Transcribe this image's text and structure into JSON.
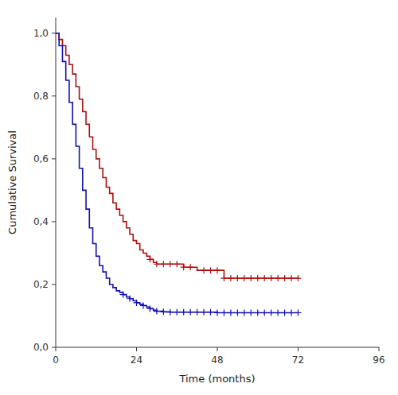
{
  "chart_data": {
    "type": "step",
    "xlabel": "Time (months)",
    "ylabel": "Cumulative Survival",
    "xlim": [
      0,
      96
    ],
    "ylim": [
      0.0,
      1.05
    ],
    "xticks": [
      0,
      24,
      48,
      72,
      96
    ],
    "yticks": [
      {
        "value": 0.0,
        "label": "0,0"
      },
      {
        "value": 0.2,
        "label": "0,2"
      },
      {
        "value": 0.4,
        "label": "0,4"
      },
      {
        "value": 0.6,
        "label": "0,6"
      },
      {
        "value": 0.8,
        "label": "0,8"
      },
      {
        "value": 1.0,
        "label": "1,0"
      }
    ],
    "grid": false,
    "series": [
      {
        "type": "step",
        "color": "#aa1111",
        "x": [
          0,
          1,
          2,
          3,
          4,
          5,
          6,
          7,
          8,
          9,
          10,
          11,
          12,
          13,
          14,
          15,
          16,
          17,
          18,
          19,
          20,
          21,
          22,
          23,
          24,
          25,
          26,
          27,
          28,
          29,
          30,
          31,
          32,
          33,
          34,
          35,
          36,
          37,
          38,
          39,
          40,
          41,
          42,
          43,
          44,
          45,
          46,
          47,
          48,
          50,
          52,
          54,
          56,
          58,
          60,
          62,
          64,
          66,
          68,
          70,
          72
        ],
        "values": [
          1.0,
          0.98,
          0.96,
          0.93,
          0.9,
          0.87,
          0.83,
          0.79,
          0.75,
          0.71,
          0.67,
          0.63,
          0.6,
          0.57,
          0.54,
          0.51,
          0.49,
          0.46,
          0.44,
          0.42,
          0.4,
          0.38,
          0.36,
          0.34,
          0.33,
          0.31,
          0.3,
          0.29,
          0.28,
          0.27,
          0.265,
          0.265,
          0.265,
          0.265,
          0.265,
          0.265,
          0.265,
          0.265,
          0.255,
          0.255,
          0.255,
          0.255,
          0.245,
          0.245,
          0.245,
          0.245,
          0.245,
          0.245,
          0.245,
          0.22,
          0.22,
          0.22,
          0.22,
          0.22,
          0.22,
          0.22,
          0.22,
          0.22,
          0.22,
          0.22,
          0.22
        ]
      },
      {
        "type": "step",
        "color": "#1111aa",
        "x": [
          0,
          1,
          2,
          3,
          4,
          5,
          6,
          7,
          8,
          9,
          10,
          11,
          12,
          13,
          14,
          15,
          16,
          17,
          18,
          19,
          20,
          21,
          22,
          23,
          24,
          25,
          26,
          27,
          28,
          29,
          30,
          32,
          34,
          36,
          38,
          40,
          42,
          44,
          46,
          48,
          50,
          52,
          54,
          56,
          58,
          60,
          62,
          64,
          66,
          68,
          70,
          72
        ],
        "values": [
          1.0,
          0.96,
          0.91,
          0.85,
          0.78,
          0.71,
          0.64,
          0.57,
          0.5,
          0.44,
          0.38,
          0.33,
          0.29,
          0.26,
          0.24,
          0.22,
          0.2,
          0.19,
          0.18,
          0.175,
          0.168,
          0.16,
          0.155,
          0.148,
          0.142,
          0.137,
          0.133,
          0.128,
          0.123,
          0.118,
          0.115,
          0.113,
          0.112,
          0.112,
          0.112,
          0.112,
          0.112,
          0.112,
          0.112,
          0.11,
          0.11,
          0.11,
          0.11,
          0.11,
          0.11,
          0.11,
          0.11,
          0.11,
          0.11,
          0.11,
          0.11,
          0.11
        ]
      },
      {
        "type": "scatter",
        "marker": "plus",
        "color": "#aa1111",
        "x": [
          28,
          30,
          32,
          34,
          36,
          38,
          40,
          44,
          46,
          48,
          50,
          52,
          54,
          56,
          58,
          60,
          62,
          64,
          66,
          68,
          70,
          72
        ],
        "values": [
          0.28,
          0.265,
          0.265,
          0.265,
          0.265,
          0.255,
          0.255,
          0.245,
          0.245,
          0.245,
          0.22,
          0.22,
          0.22,
          0.22,
          0.22,
          0.22,
          0.22,
          0.22,
          0.22,
          0.22,
          0.22,
          0.22
        ]
      },
      {
        "type": "scatter",
        "marker": "plus",
        "color": "#1111aa",
        "x": [
          20,
          22,
          24,
          26,
          28,
          30,
          32,
          34,
          36,
          38,
          40,
          42,
          44,
          46,
          48,
          50,
          52,
          54,
          56,
          58,
          60,
          62,
          64,
          66,
          68,
          70,
          72
        ],
        "values": [
          0.168,
          0.155,
          0.142,
          0.133,
          0.123,
          0.115,
          0.113,
          0.112,
          0.112,
          0.112,
          0.112,
          0.112,
          0.112,
          0.112,
          0.11,
          0.11,
          0.11,
          0.11,
          0.11,
          0.11,
          0.11,
          0.11,
          0.11,
          0.11,
          0.11,
          0.11,
          0.11
        ]
      }
    ]
  }
}
